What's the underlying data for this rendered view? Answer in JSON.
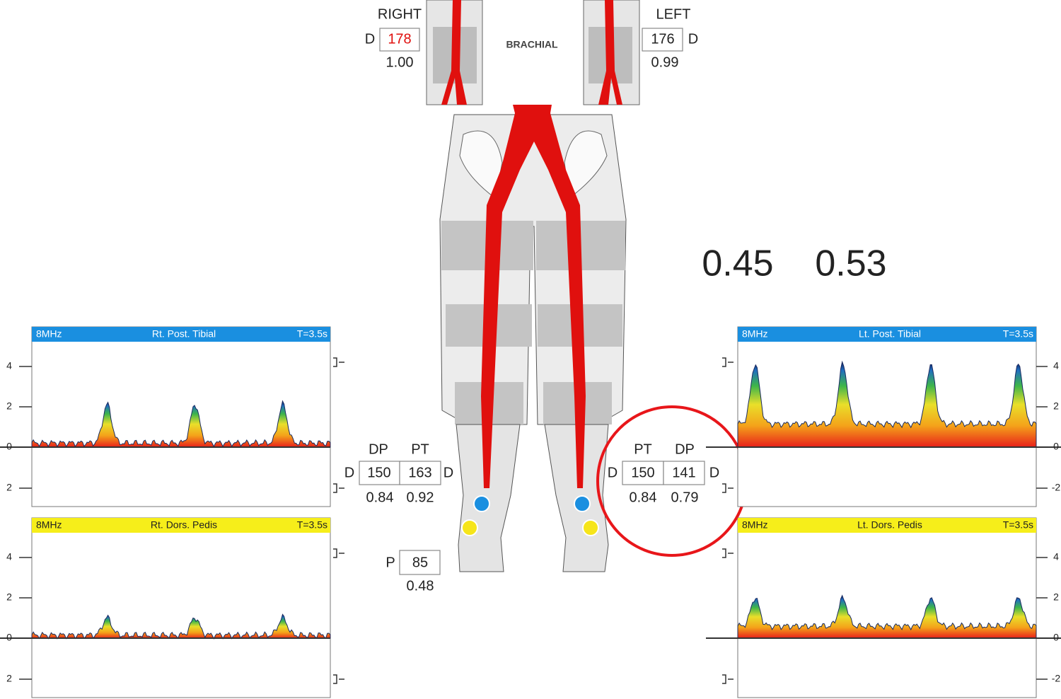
{
  "brachial": {
    "label": "BRACHIAL",
    "right": {
      "side": "RIGHT",
      "letter": "D",
      "pressure": "178",
      "ratio": "1.00"
    },
    "left": {
      "side": "LEFT",
      "letter": "D",
      "pressure": "176",
      "ratio": "0.99"
    }
  },
  "annotation": [
    "0.45",
    "0.53"
  ],
  "right_ankle": {
    "headers": [
      "DP",
      "PT"
    ],
    "letters": [
      "D",
      "D"
    ],
    "pressures": [
      "150",
      "163"
    ],
    "ratios": [
      "0.84",
      "0.92"
    ]
  },
  "left_ankle": {
    "headers": [
      "PT",
      "DP"
    ],
    "letters": [
      "D",
      "D"
    ],
    "pressures": [
      "150",
      "141"
    ],
    "ratios": [
      "0.84",
      "0.79"
    ]
  },
  "toe": {
    "letter": "P",
    "pressure": "85",
    "ratio": "0.48"
  },
  "panels": [
    {
      "frequency": "8MHz",
      "title": "Rt. Post. Tibial",
      "time": "T=3.5s",
      "axis_labels": [
        "4",
        "2",
        "0",
        "2"
      ]
    },
    {
      "frequency": "8MHz",
      "title": "Rt. Dors. Pedis",
      "time": "T=3.5s",
      "axis_labels": [
        "4",
        "2",
        "0",
        "2"
      ]
    },
    {
      "frequency": "8MHz",
      "title": "Lt. Post. Tibial",
      "time": "T=3.5s",
      "axis_labels": [
        "4",
        "2",
        "0",
        "-2"
      ]
    },
    {
      "frequency": "8MHz",
      "title": "Lt. Dors. Pedis",
      "time": "T=3.5s",
      "axis_labels": [
        "4",
        "2",
        "0",
        "-2"
      ]
    }
  ]
}
